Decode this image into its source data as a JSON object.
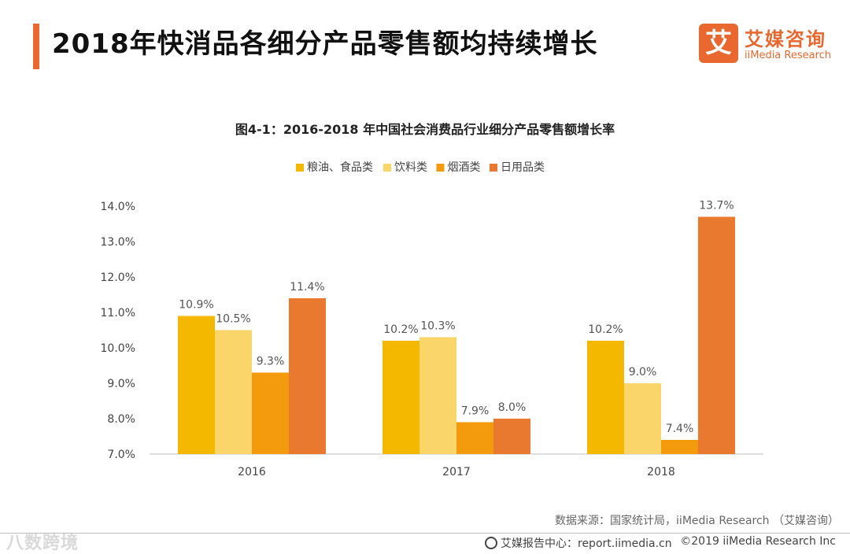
{
  "header": {
    "title": "2018年快消品各细分产品零售额均持续增长"
  },
  "logo": {
    "mark": "艾",
    "name_cn": "艾媒咨询",
    "name_en": "iiMedia Research"
  },
  "chart_data": {
    "type": "bar",
    "title": "图4-1：2016-2018 年中国社会消费品行业细分产品零售额增长率",
    "categories": [
      "2016",
      "2017",
      "2018"
    ],
    "series": [
      {
        "name": "粮油、食品类",
        "color": "#f5b800",
        "values": [
          10.9,
          10.2,
          10.2
        ],
        "labels": [
          "10.9%",
          "10.2%",
          "10.2%"
        ]
      },
      {
        "name": "饮料类",
        "color": "#fad66a",
        "values": [
          10.5,
          10.3,
          9.0
        ],
        "labels": [
          "10.5%",
          "10.3%",
          "9.0%"
        ]
      },
      {
        "name": "烟酒类",
        "color": "#f39a0d",
        "values": [
          9.3,
          7.9,
          7.4
        ],
        "labels": [
          "9.3%",
          "7.9%",
          "7.4%"
        ]
      },
      {
        "name": "日用品类",
        "color": "#e8792e",
        "values": [
          11.4,
          8.0,
          13.7
        ],
        "labels": [
          "11.4%",
          "8.0%",
          "13.7%"
        ]
      }
    ],
    "ylim": [
      7.0,
      14.0
    ],
    "yticks": [
      "7.0%",
      "8.0%",
      "9.0%",
      "10.0%",
      "11.0%",
      "12.0%",
      "13.0%",
      "14.0%"
    ],
    "legend_position": "top",
    "xlabel": "",
    "ylabel": ""
  },
  "source": "数据来源：国家统计局，iiMedia Research （艾媒咨询）",
  "footer": {
    "watermark": "八数跨境",
    "site": "艾媒报告中心：report.iimedia.cn",
    "copyright": "©2019  iiMedia Research  Inc"
  }
}
